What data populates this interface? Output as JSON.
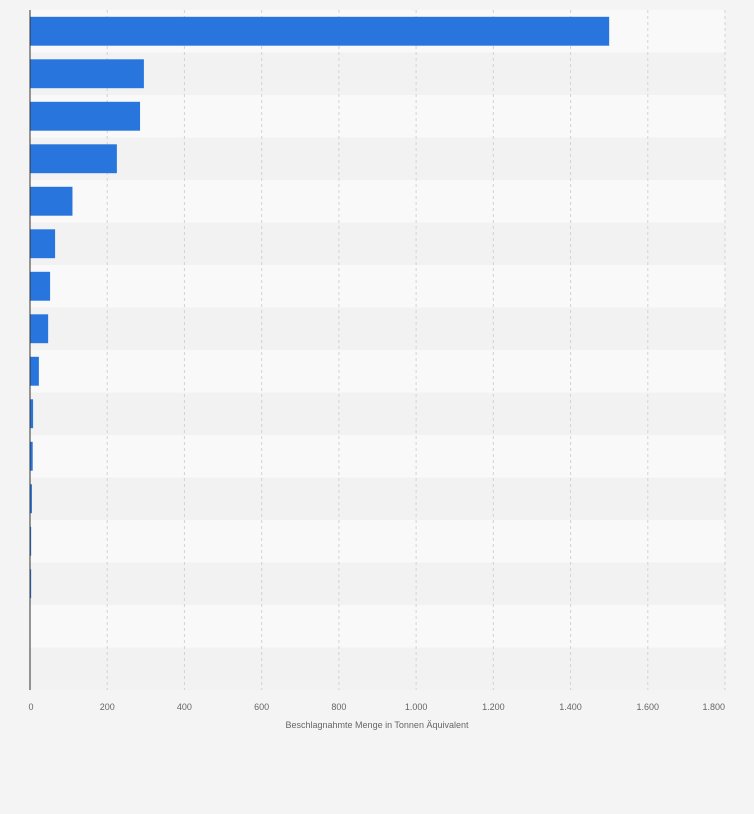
{
  "chart_data": {
    "type": "bar",
    "orientation": "horizontal",
    "categories": [
      "",
      "",
      "",
      "",
      "",
      "",
      "",
      "",
      "",
      "",
      "",
      "",
      "",
      "",
      "",
      ""
    ],
    "values": [
      1500,
      295,
      285,
      225,
      110,
      65,
      52,
      47,
      23,
      8,
      7,
      5,
      3,
      3,
      0,
      0
    ],
    "xlabel": "Beschlagnahmte Menge in Tonnen Äquivalent",
    "xlim": [
      0,
      1800
    ],
    "xticks": [
      0,
      200,
      400,
      600,
      800,
      1000,
      1200,
      1400,
      1600,
      1800
    ],
    "xtick_labels": [
      "0",
      "200",
      "400",
      "600",
      "800",
      "1.000",
      "1.200",
      "1.400",
      "1.600",
      "1.800"
    ],
    "grid": true,
    "colors": {
      "bar": "#2876dd",
      "background": "#f4f4f4",
      "band_light": "#f9f9f9",
      "band_dark": "#f2f2f2",
      "gridline": "#d3d3d3",
      "axis": "#333333",
      "text": "#666666"
    }
  }
}
